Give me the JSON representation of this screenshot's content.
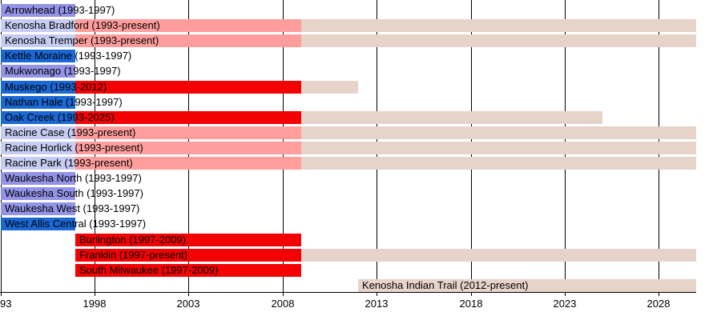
{
  "chart_data": {
    "type": "bar",
    "subtype": "timeline-gantt-conference-membership",
    "title": "",
    "x_axis": {
      "range": [
        1993,
        2030
      ],
      "ticks": [
        {
          "label": "93",
          "year": 1993,
          "clipped": true
        },
        {
          "label": "1998",
          "year": 1998,
          "clipped": false
        },
        {
          "label": "2003",
          "year": 2003,
          "clipped": false
        },
        {
          "label": "2008",
          "year": 2008,
          "clipped": false
        },
        {
          "label": "2013",
          "year": 2013,
          "clipped": false
        },
        {
          "label": "2018",
          "year": 2018,
          "clipped": false
        },
        {
          "label": "2023",
          "year": 2023,
          "clipped": false
        },
        {
          "label": "2028",
          "year": 2028,
          "clipped": false
        }
      ]
    },
    "present_extends_to": 2030,
    "colors": {
      "periwinkle": "#9393E8",
      "lavender": "#C6CCF2",
      "blue": "#1A68D5",
      "salmon": "#FF9D9D",
      "red": "#F20202",
      "beige": "#E6D4CA",
      "grid": "#000000",
      "text": "#000000"
    },
    "rows": [
      {
        "label": "Arrowhead (1993-1997)",
        "segments": [
          {
            "start": 1993,
            "end": 1997,
            "color": "periwinkle"
          }
        ]
      },
      {
        "label": "Kenosha Bradford (1993-present)",
        "segments": [
          {
            "start": 1993,
            "end": 1997,
            "color": "lavender"
          },
          {
            "start": 1997,
            "end": 2009,
            "color": "salmon"
          },
          {
            "start": 2009,
            "end": "present",
            "color": "beige"
          }
        ]
      },
      {
        "label": "Kenosha Tremper (1993-present)",
        "segments": [
          {
            "start": 1993,
            "end": 1997,
            "color": "lavender"
          },
          {
            "start": 1997,
            "end": 2009,
            "color": "salmon"
          },
          {
            "start": 2009,
            "end": "present",
            "color": "beige"
          }
        ]
      },
      {
        "label": "Kettle Moraine (1993-1997)",
        "segments": [
          {
            "start": 1993,
            "end": 1997,
            "color": "blue"
          }
        ]
      },
      {
        "label": "Mukwonago (1993-1997)",
        "segments": [
          {
            "start": 1993,
            "end": 1997,
            "color": "periwinkle"
          }
        ]
      },
      {
        "label": "Muskego (1993-2012)",
        "segments": [
          {
            "start": 1993,
            "end": 1997,
            "color": "blue"
          },
          {
            "start": 1997,
            "end": 2009,
            "color": "red"
          },
          {
            "start": 2009,
            "end": 2012,
            "color": "beige"
          }
        ]
      },
      {
        "label": "Nathan Hale (1993-1997)",
        "segments": [
          {
            "start": 1993,
            "end": 1997,
            "color": "blue"
          }
        ]
      },
      {
        "label": "Oak Creek (1993-2025)",
        "segments": [
          {
            "start": 1993,
            "end": 1997,
            "color": "blue"
          },
          {
            "start": 1997,
            "end": 2009,
            "color": "red"
          },
          {
            "start": 2009,
            "end": 2025,
            "color": "beige"
          }
        ]
      },
      {
        "label": "Racine Case (1993-present)",
        "segments": [
          {
            "start": 1993,
            "end": 1997,
            "color": "lavender"
          },
          {
            "start": 1997,
            "end": 2009,
            "color": "salmon"
          },
          {
            "start": 2009,
            "end": "present",
            "color": "beige"
          }
        ]
      },
      {
        "label": "Racine Horlick (1993-present)",
        "segments": [
          {
            "start": 1993,
            "end": 1997,
            "color": "lavender"
          },
          {
            "start": 1997,
            "end": 2009,
            "color": "salmon"
          },
          {
            "start": 2009,
            "end": "present",
            "color": "beige"
          }
        ]
      },
      {
        "label": "Racine Park (1993-present)",
        "segments": [
          {
            "start": 1993,
            "end": 1997,
            "color": "lavender"
          },
          {
            "start": 1997,
            "end": 2009,
            "color": "salmon"
          },
          {
            "start": 2009,
            "end": "present",
            "color": "beige"
          }
        ]
      },
      {
        "label": "Waukesha North (1993-1997)",
        "segments": [
          {
            "start": 1993,
            "end": 1997,
            "color": "periwinkle"
          }
        ]
      },
      {
        "label": "Waukesha South (1993-1997)",
        "segments": [
          {
            "start": 1993,
            "end": 1997,
            "color": "periwinkle"
          }
        ]
      },
      {
        "label": "Waukesha West (1993-1997)",
        "segments": [
          {
            "start": 1993,
            "end": 1997,
            "color": "periwinkle"
          }
        ]
      },
      {
        "label": "West Allis Central (1993-1997)",
        "segments": [
          {
            "start": 1993,
            "end": 1997,
            "color": "blue"
          }
        ]
      },
      {
        "label": "Burlington (1997-2009)",
        "segments": [
          {
            "start": 1997,
            "end": 2009,
            "color": "red"
          }
        ]
      },
      {
        "label": "Franklin (1997-present)",
        "segments": [
          {
            "start": 1997,
            "end": 2009,
            "color": "red"
          },
          {
            "start": 2009,
            "end": "present",
            "color": "beige"
          }
        ]
      },
      {
        "label": "South Milwaukee (1997-2009)",
        "segments": [
          {
            "start": 1997,
            "end": 2009,
            "color": "red"
          }
        ]
      },
      {
        "label": "Kenosha Indian Trail (2012-present)",
        "segments": [
          {
            "start": 2012,
            "end": "present",
            "color": "beige"
          }
        ]
      }
    ]
  }
}
